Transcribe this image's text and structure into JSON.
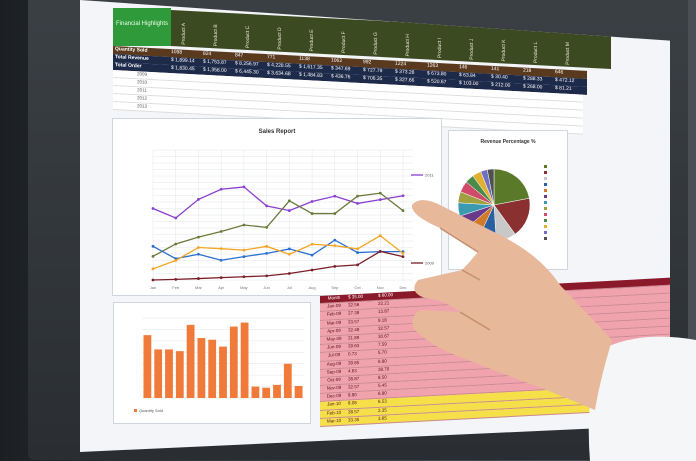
{
  "header": {
    "title": "Financial Highlights",
    "products": [
      "Product A",
      "Product B",
      "Product C",
      "Product D",
      "Product E",
      "Product F",
      "Product G",
      "Product H",
      "Product I",
      "Product J",
      "Product K",
      "Product L",
      "Product M"
    ],
    "rows": [
      {
        "label": "Quantity Sold",
        "values": [
          "1098",
          "824",
          "847",
          "771",
          "1138",
          "1062",
          "992",
          "1224",
          "1263",
          "146",
          "141",
          "218",
          "646"
        ]
      },
      {
        "label": "Total Revenue",
        "values": [
          "$ 1,899.14",
          "$ 1,753.87",
          "$ 8,256.97",
          "$ 4,228.55",
          "$ 1,617.35",
          "$ 347.69",
          "$ 727.79",
          "$ 373.28",
          "$ 673.80",
          "$ 63.84",
          "$ 30.40",
          "$ 288.33",
          "$ 472.12"
        ]
      },
      {
        "label": "Total Order",
        "values": [
          "$ 1,830.45",
          "$ 1,358.00",
          "$ 6,445.30",
          "$ 3,634.68",
          "$ 1,484.83",
          "$ 436.76",
          "$ 706.35",
          "$ 327.66",
          "$ 520.67",
          "$ 103.00",
          "$ 212.00",
          "$ 268.00",
          "$ 81.21"
        ]
      }
    ],
    "years": [
      "2009",
      "2010",
      "2011",
      "2012",
      "2013"
    ]
  },
  "colors": {
    "green": "#2f9a3a",
    "olive": "#3c4a22",
    "pink": "#f0a3ad",
    "yellow": "#f5e04a",
    "bar": "#f07a3a"
  },
  "chart_data": [
    {
      "type": "line",
      "title": "Sales Report",
      "categories": [
        "Jan",
        "Feb",
        "Mar",
        "Apr",
        "May",
        "Jun",
        "Jul",
        "Aug",
        "Sep",
        "Oct",
        "Nov",
        "Dec"
      ],
      "ylim": [
        0,
        1000
      ],
      "grid": true,
      "legend": "right",
      "series": [
        {
          "name": "2011",
          "color": "#8b3fd0",
          "values": [
            550,
            477,
            620,
            698,
            716,
            570,
            534,
            604,
            645,
            589,
            618,
            648
          ]
        },
        {
          "color": "#6b7a3a",
          "values": [
            182,
            277,
            330,
            373,
            423,
            405,
            609,
            511,
            511,
            645,
            668,
            534
          ]
        },
        {
          "color": "#2a6fd0",
          "values": [
            259,
            164,
            198,
            152,
            180,
            205,
            239,
            191,
            307,
            211,
            218,
            218
          ]
        },
        {
          "color": "#f5a524",
          "values": [
            86,
            150,
            250,
            241,
            230,
            259,
            198,
            275,
            264,
            239,
            341,
            205
          ]
        },
        {
          "name": "2009",
          "color": "#7a1f2a",
          "values": [
            0,
            5,
            11,
            18,
            25,
            32,
            50,
            77,
            105,
            116,
            220,
            180
          ]
        }
      ]
    },
    {
      "type": "pie",
      "title": "Revenue Percentage %",
      "values": [
        22,
        18,
        9,
        8,
        7,
        6,
        6,
        5,
        5,
        4,
        4,
        3,
        3
      ],
      "colors": [
        "#5a7a2a",
        "#8b3030",
        "#c8c8c8",
        "#2a5fa0",
        "#d07a2a",
        "#6a3a8a",
        "#3a9ab0",
        "#a0a040",
        "#d04a6a",
        "#4a8a4a",
        "#e0b030",
        "#7070c0",
        "#505050"
      ]
    },
    {
      "type": "bar",
      "values": [
        1100,
        850,
        850,
        820,
        1280,
        1050,
        1020,
        900,
        1250,
        1320,
        200,
        180,
        230,
        600,
        210
      ],
      "ylim": [
        0,
        1400
      ],
      "legend": "bottom",
      "series_name": "Quantity Sold"
    }
  ],
  "months": {
    "header": [
      "Month",
      "$ 35.00",
      "$ 60.00"
    ],
    "rows": [
      [
        "Jan-09",
        "32.56",
        "22.21"
      ],
      [
        "Feb-09",
        "27.38",
        "13.87"
      ],
      [
        "Mar-09",
        "33.57",
        "9.18"
      ],
      [
        "Apr-09",
        "32.48",
        "32.57"
      ],
      [
        "May-09",
        "31.89",
        "30.67"
      ],
      [
        "Jun-09",
        "39.63",
        "7.59"
      ],
      [
        "Jul-09",
        "0.73",
        "5.70"
      ],
      [
        "Aug-09",
        "39.85",
        "6.80"
      ],
      [
        "Sep-09",
        "4.63",
        "38.70"
      ],
      [
        "Oct-09",
        "38.87",
        "8.50"
      ],
      [
        "Nov-09",
        "32.57",
        "5.45"
      ],
      [
        "Dec-09",
        "8.80",
        "6.80"
      ],
      [
        "Jan-10",
        "8.08",
        "6.53"
      ],
      [
        "Feb-10",
        "38.57",
        "2.35"
      ],
      [
        "Mar-10",
        "33.35",
        "3.65"
      ]
    ]
  }
}
